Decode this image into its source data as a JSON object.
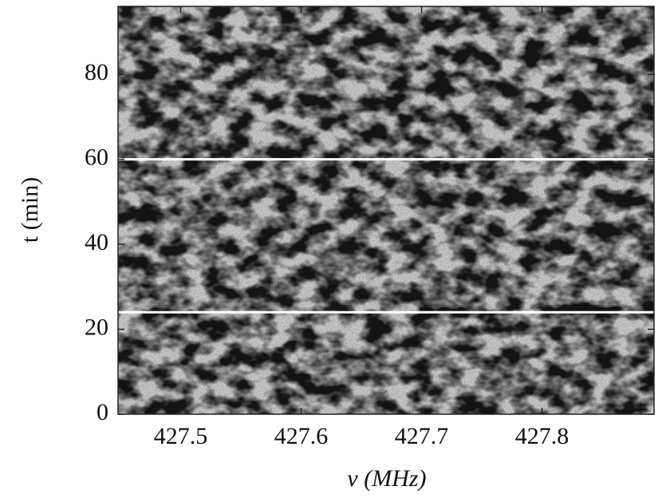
{
  "chart_data": {
    "type": "heatmap",
    "x_label": "ν (MHz)",
    "y_label": "t (min)",
    "xlim": [
      427.448,
      427.893
    ],
    "ylim": [
      0,
      96
    ],
    "xticks": [
      427.5,
      427.6,
      427.7,
      427.8
    ],
    "yticks": [
      0,
      20,
      40,
      60,
      80
    ],
    "gap_lines": [
      24,
      60
    ],
    "gap_color": "#ffffff"
  }
}
